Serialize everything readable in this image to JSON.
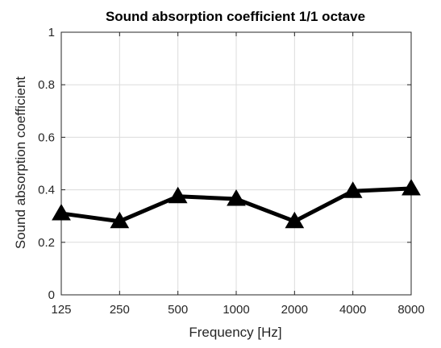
{
  "chart_data": {
    "type": "line",
    "title": "Sound absorption coefficient 1/1 octave",
    "xlabel": "Frequency [Hz]",
    "ylabel": "Sound absorption coefficient",
    "categories": [
      "125",
      "250",
      "500",
      "1000",
      "2000",
      "4000",
      "8000"
    ],
    "series": [
      {
        "values": [
          0.31,
          0.28,
          0.375,
          0.365,
          0.28,
          0.395,
          0.405
        ]
      }
    ],
    "ylim": [
      0,
      1
    ],
    "yticks": [
      "0",
      "0.2",
      "0.4",
      "0.6",
      "0.8",
      "1"
    ],
    "grid": true,
    "marker": "triangle",
    "line_color": "#000000",
    "grid_color": "#dcdcdc",
    "axis_color": "#262626"
  }
}
